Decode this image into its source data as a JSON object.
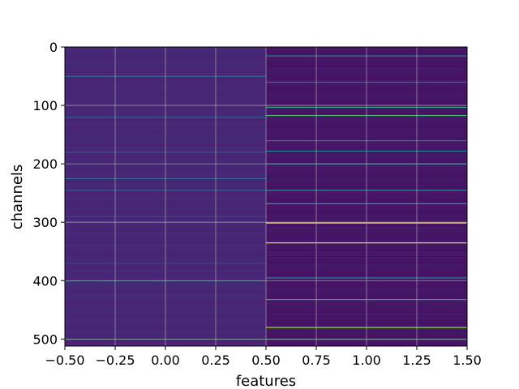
{
  "chart_data": {
    "type": "heatmap",
    "colormap": "viridis",
    "background_color": "#3e1f6e",
    "grid": true,
    "grid_color": "#b0b0b0",
    "xlabel": "features",
    "ylabel": "channels",
    "xlim": [
      -0.5,
      1.5
    ],
    "ylim": [
      512,
      0
    ],
    "x_ticks": [
      -0.5,
      -0.25,
      0.0,
      0.25,
      0.5,
      0.75,
      1.0,
      1.25,
      1.5
    ],
    "x_tick_labels": [
      "−0.50",
      "−0.25",
      "0.00",
      "0.25",
      "0.50",
      "0.75",
      "1.00",
      "1.25",
      "1.50"
    ],
    "y_ticks": [
      0,
      100,
      200,
      300,
      400,
      500
    ],
    "y_tick_labels": [
      "0",
      "100",
      "200",
      "300",
      "400",
      "500"
    ],
    "columns": [
      {
        "feature": 0,
        "base_value": 0.1,
        "bright_channels": [
          {
            "channel": 50,
            "value": 0.35
          },
          {
            "channel": 120,
            "value": 0.3
          },
          {
            "channel": 180,
            "value": 0.25
          },
          {
            "channel": 225,
            "value": 0.35
          },
          {
            "channel": 245,
            "value": 0.3
          },
          {
            "channel": 290,
            "value": 0.2
          },
          {
            "channel": 370,
            "value": 0.2
          },
          {
            "channel": 400,
            "value": 0.3
          },
          {
            "channel": 500,
            "value": 0.35
          }
        ]
      },
      {
        "feature": 1,
        "base_value": 0.05,
        "bright_channels": [
          {
            "channel": 15,
            "value": 0.45
          },
          {
            "channel": 60,
            "value": 0.35
          },
          {
            "channel": 103,
            "value": 0.6
          },
          {
            "channel": 117,
            "value": 0.7
          },
          {
            "channel": 160,
            "value": 0.4
          },
          {
            "channel": 178,
            "value": 0.45
          },
          {
            "channel": 200,
            "value": 0.4
          },
          {
            "channel": 245,
            "value": 0.5
          },
          {
            "channel": 268,
            "value": 0.55
          },
          {
            "channel": 301,
            "value": 1.0
          },
          {
            "channel": 335,
            "value": 0.95
          },
          {
            "channel": 395,
            "value": 0.45
          },
          {
            "channel": 432,
            "value": 0.6
          },
          {
            "channel": 480,
            "value": 0.85
          },
          {
            "channel": 500,
            "value": 0.4
          }
        ]
      }
    ]
  }
}
